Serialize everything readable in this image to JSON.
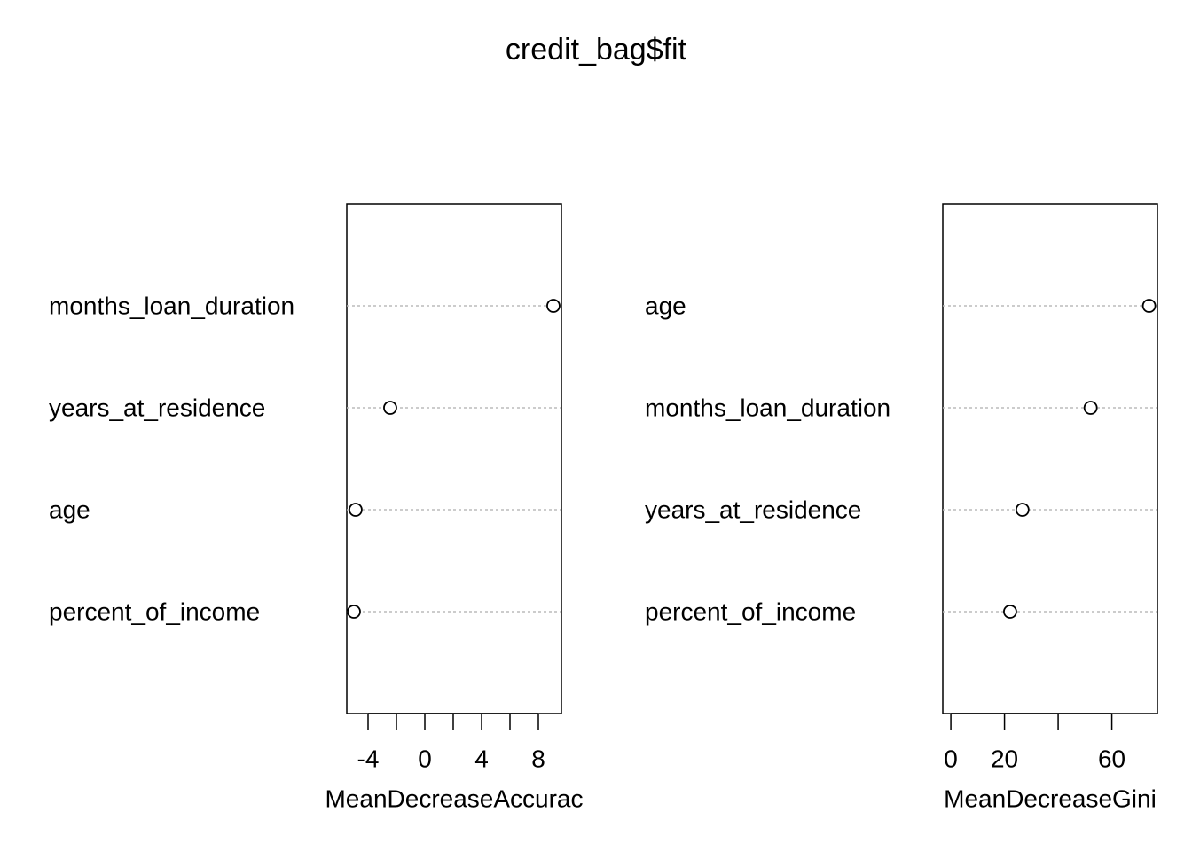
{
  "title": "credit_bag$fit",
  "chart_data": [
    {
      "type": "dotchart",
      "xlabel": "MeanDecreaseAccurac",
      "categories": [
        "months_loan_duration",
        "years_at_residence",
        "age",
        "percent_of_income"
      ],
      "values": [
        9.06,
        -2.44,
        -4.88,
        -5.0
      ],
      "xlim": [
        -5.5,
        9.625
      ],
      "xticks": [
        -4,
        0,
        4,
        8
      ],
      "xminorticks": [
        -2,
        2,
        6
      ],
      "grid": true,
      "color": "#000000"
    },
    {
      "type": "dotchart",
      "xlabel": "MeanDecreaseGini",
      "categories": [
        "age",
        "months_loan_duration",
        "years_at_residence",
        "percent_of_income"
      ],
      "values": [
        73.9,
        52.1,
        26.7,
        22.1
      ],
      "xlim": [
        -3,
        77
      ],
      "xticks": [
        0,
        20,
        60
      ],
      "xminorticks": [
        40
      ],
      "grid": true,
      "color": "#000000"
    }
  ]
}
